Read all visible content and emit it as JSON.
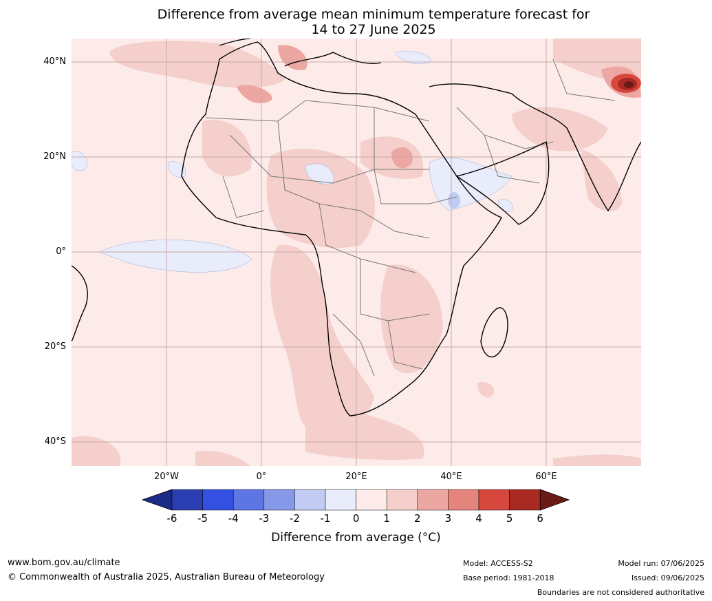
{
  "title": {
    "line1": "Difference from average mean minimum temperature forecast for",
    "line2": "14 to 27 June 2025"
  },
  "map": {
    "lat_labels": [
      "40°N",
      "20°N",
      "0°",
      "20°S",
      "40°S"
    ],
    "lon_labels": [
      "20°W",
      "0°",
      "20°E",
      "40°E",
      "60°E"
    ],
    "projection": "Mercator",
    "gridlines": true
  },
  "colorbar": {
    "label": "Difference from average ($^\\circ$C)",
    "label_display": "Difference from average (°C)",
    "ticks": [
      "-6",
      "-5",
      "-4",
      "-3",
      "-2",
      "-1",
      "0",
      "1",
      "2",
      "3",
      "4",
      "5",
      "6"
    ],
    "colors": [
      "#1c2c86",
      "#2a3eb1",
      "#3450e0",
      "#5d76e3",
      "#8599e8",
      "#c2ccf2",
      "#e8ecfb",
      "#fcebe9",
      "#f4cfcc",
      "#eca7a3",
      "#e4847c",
      "#d6473e",
      "#a82a22",
      "#6b1b16"
    ]
  },
  "footer": {
    "url": "www.bom.gov.au/climate",
    "copyright": "© Commonwealth of Australia 2025, Australian Bureau of Meteorology",
    "model": "Model: ACCESS-S2",
    "base_period": "Base period: 1981-2018",
    "model_run": "Model run: 07/06/2025",
    "issued": "Issued: 09/06/2025",
    "disclaimer": "Boundaries are not considered authoritative"
  }
}
